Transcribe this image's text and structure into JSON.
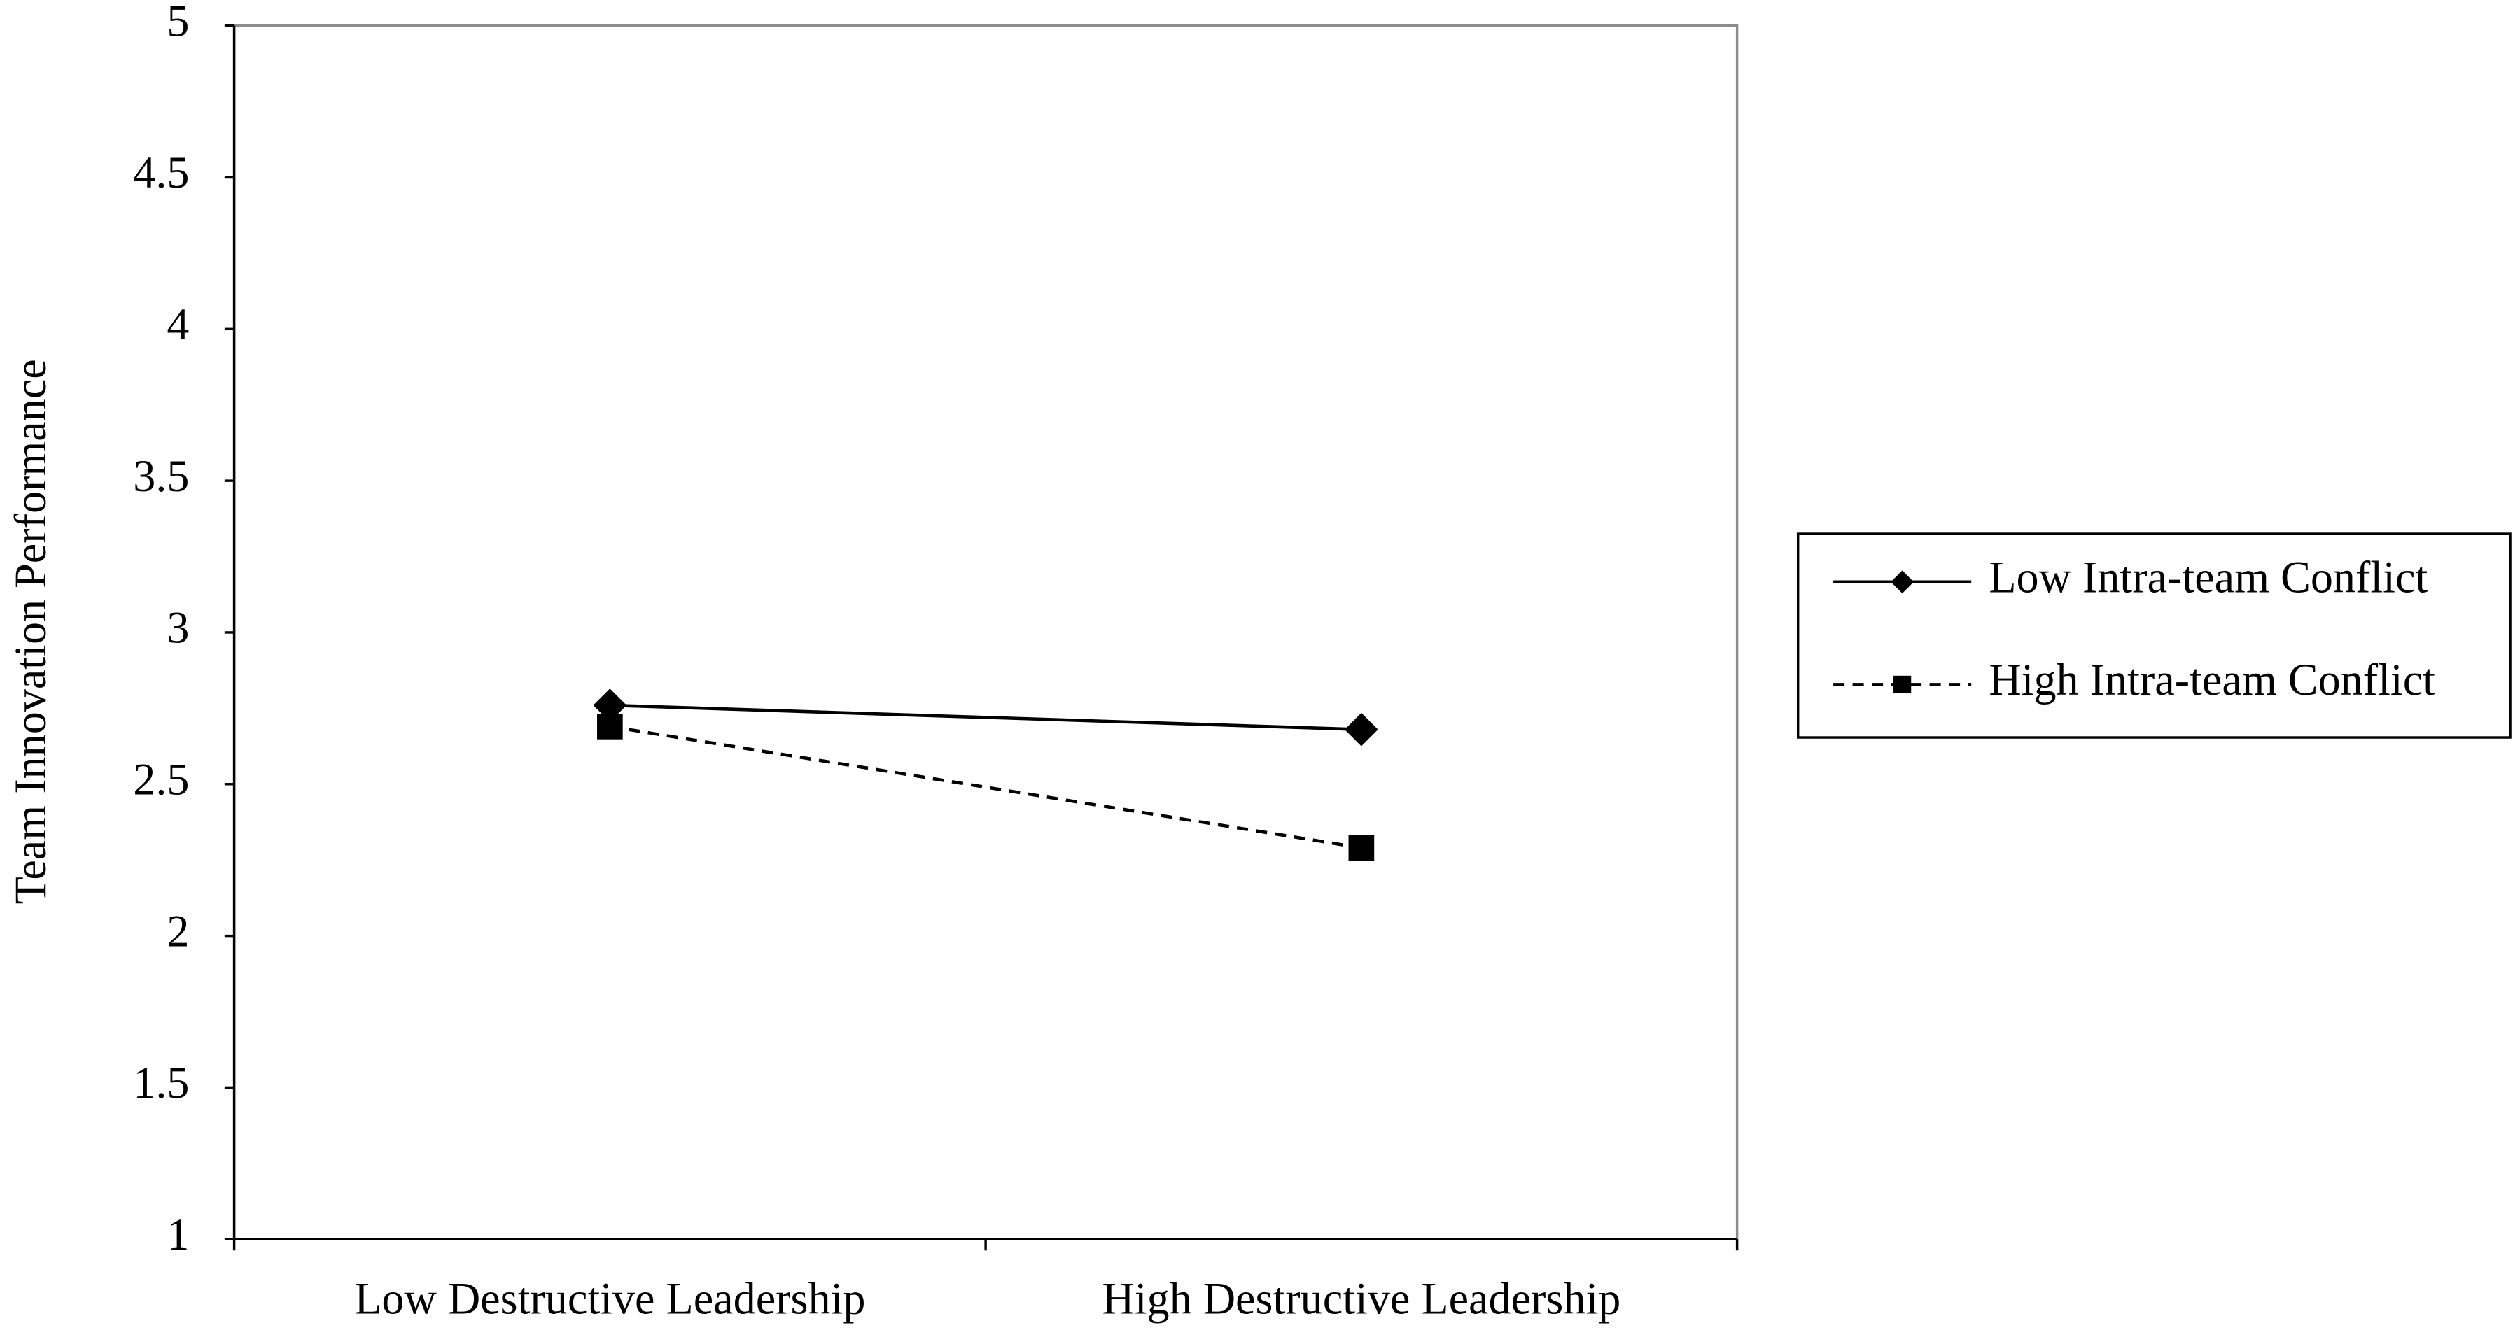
{
  "chart_data": {
    "type": "line",
    "y_label": "Team Innovation Performance",
    "categories": [
      "Low Destructive Leadership",
      "High Destructive Leadership"
    ],
    "series": [
      {
        "name": "Low Intra-team Conflict",
        "color": "#000000",
        "marker": "diamond",
        "line_style": "solid",
        "values": [
          2.76,
          2.68
        ]
      },
      {
        "name": "High Intra-team Conflict",
        "color": "#000000",
        "marker": "square",
        "line_style": "dashed",
        "values": [
          2.69,
          2.29
        ]
      }
    ],
    "ylim": [
      1,
      5
    ],
    "yticks": [
      1,
      1.5,
      2,
      2.5,
      3,
      3.5,
      4,
      4.5,
      5
    ],
    "grid": false,
    "legend": "right"
  }
}
